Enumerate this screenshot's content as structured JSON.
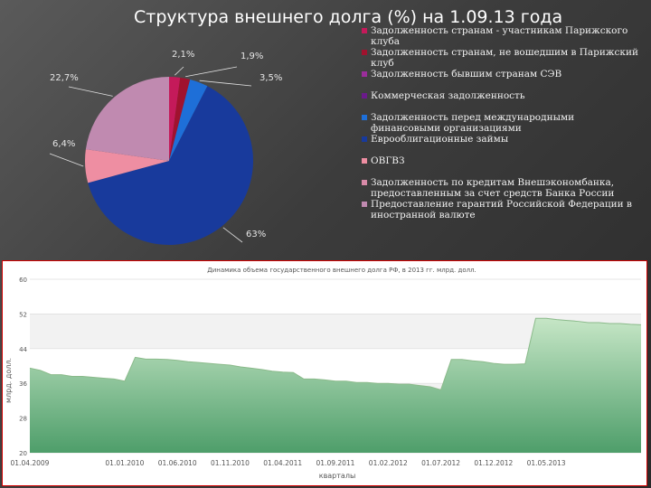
{
  "slide": {
    "title": "Структура внешнего долга (%) на 1.09.13 года"
  },
  "chart_data": [
    {
      "type": "pie",
      "title": "Структура внешнего долга (%) на 1.09.13 года",
      "slices": [
        {
          "name": "Задолженность странам - участникам Парижского клуба",
          "value": 2.1,
          "label": "2,1%",
          "color": "#c41a5a"
        },
        {
          "name": "Задолженность странам, не вошедшим в Парижский клуб",
          "value": 1.9,
          "label": "1,9%",
          "color": "#a0122e"
        },
        {
          "name": "Задолженность бывшим странам СЭВ",
          "value": 0.0,
          "label": "",
          "color": "#9b2d9b"
        },
        {
          "name": "Коммерческая задолженность",
          "value": 0.0,
          "label": "",
          "color": "#6a1a8a"
        },
        {
          "name": "Задолженность перед международными финансовыми организациями",
          "value": 3.5,
          "label": "3,5%",
          "color": "#1e6fd8"
        },
        {
          "name": "Еврооблигационные займы",
          "value": 63.0,
          "label": "63%",
          "color": "#183a9c"
        },
        {
          "name": "ОВГВЗ",
          "value": 6.4,
          "label": "6,4%",
          "color": "#ee8ea2"
        },
        {
          "name": "Задолженность по кредитам Внешэкономбанка, предоставленным за счет средств Банка России",
          "value": 0.0,
          "label": "",
          "color": "#d88aa8"
        },
        {
          "name": "Предоставление гарантий Российской Федерации в иностранной валюте",
          "value": 22.7,
          "label": "22,7%",
          "color": "#c08ab0"
        }
      ]
    },
    {
      "type": "area",
      "title": "Динамика объема государственного внешнего долга РФ, в 2013 гг. млрд. долл.",
      "xlabel": "кварталы",
      "ylabel": "млрд. долл.",
      "ylim": [
        20,
        60
      ],
      "yticks": [
        20,
        28,
        36,
        44,
        52,
        60
      ],
      "x_tick_labels": [
        "01.04.2009",
        "01.01.2010",
        "01.06.2010",
        "01.11.2010",
        "01.04.2011",
        "01.09.2011",
        "01.02.2012",
        "01.07.2012",
        "01.12.2012",
        "01.05.2013"
      ],
      "x_tick_index": [
        0,
        9,
        14,
        19,
        24,
        29,
        34,
        39,
        44,
        49
      ],
      "values": [
        39.5,
        39,
        38,
        38,
        37.6,
        37.6,
        37.4,
        37.2,
        37,
        36.5,
        42,
        41.6,
        41.6,
        41.5,
        41.3,
        41,
        40.8,
        40.6,
        40.4,
        40.2,
        39.8,
        39.5,
        39.2,
        38.8,
        38.6,
        38.5,
        37,
        37,
        36.8,
        36.5,
        36.5,
        36.2,
        36.2,
        36,
        36,
        35.8,
        35.8,
        35.5,
        35.2,
        34.5,
        41.5,
        41.5,
        41.2,
        41,
        40.6,
        40.4,
        40.4,
        40.5,
        51,
        51,
        50.7,
        50.5,
        50.3,
        50,
        50,
        49.8,
        49.8,
        49.6,
        49.5
      ],
      "grid": true,
      "colors": {
        "fill_top": "#c6e6c6",
        "fill_bottom": "#4e9e6a",
        "line": "#8aba8a"
      }
    }
  ]
}
